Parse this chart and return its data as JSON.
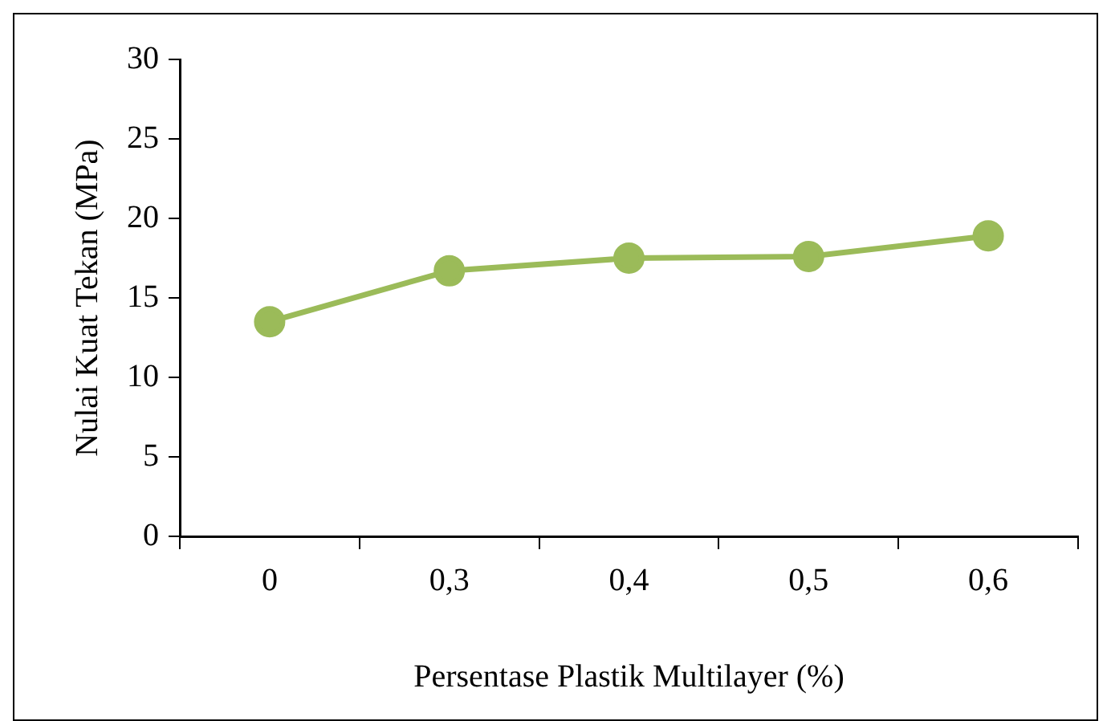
{
  "chart_data": {
    "type": "line",
    "xlabel": "Persentase Plastik Multilayer (%)",
    "ylabel": "Nulai Kuat Tekan (MPa)",
    "categories": [
      "0",
      "0,3",
      "0,4",
      "0,5",
      "0,6"
    ],
    "series": [
      {
        "color": "#9bbb59",
        "values": [
          13.5,
          16.7,
          17.5,
          17.6,
          18.9
        ]
      }
    ],
    "ylim": [
      0,
      30
    ],
    "yticks": [
      0,
      5,
      10,
      15,
      20,
      25,
      30
    ],
    "grid": false,
    "legend": false,
    "marker": "circle",
    "line_style": "solid"
  }
}
